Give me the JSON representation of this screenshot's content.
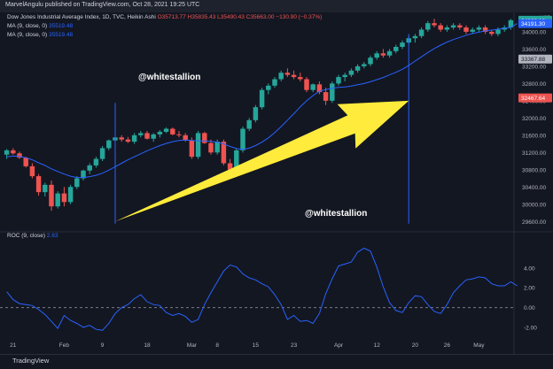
{
  "header": {
    "published_by": "MarvelAngulu published on TradingView.com, Oct 28, 2021 19:25 UTC"
  },
  "legend": {
    "symbol": "Dow Jones Industrial Average Index, 1D, TVC, Heikin Ashi",
    "ohlc": "O35713.77 H35835.43 L35490.43 C35663.00 −130.90 (−0.37%)",
    "ma1": "MA (9, close, 0)",
    "ma1_value": "35519.48",
    "ma2": "MA (9, close, 0)",
    "ma2_value": "35519.48",
    "roc_label": "ROC (9, close)",
    "roc_value": "2.83"
  },
  "watermarks": [
    "@whitestallion",
    "@whitestallion"
  ],
  "footer": {
    "brand": "TradingView"
  },
  "colors": {
    "up": "#26a69a",
    "down": "#ef5350",
    "ma": "#2962ff",
    "arrow": "#ffeb3b",
    "bg": "#131722"
  },
  "chart_data": [
    {
      "type": "candlestick",
      "title": "",
      "price_ticks": [
        "34000.00",
        "33600.00",
        "33200.00",
        "32800.00",
        "32400.00",
        "32000.00",
        "31600.00",
        "31200.00",
        "30800.00",
        "30400.00",
        "30000.00",
        "29600.00"
      ],
      "price_badges": [
        {
          "text": "34268.12",
          "value": 34268.12,
          "color": "#26a69a"
        },
        {
          "text": "34191.30",
          "value": 34191.3,
          "color": "#2962ff"
        },
        {
          "text": "33367.88",
          "value": 33367.88,
          "color": "#b2b5be"
        },
        {
          "text": "32467.64",
          "value": 32467.64,
          "color": "#ef5350"
        }
      ],
      "axis_unit": "USD",
      "ylim": [
        29400,
        34450
      ],
      "candles": [
        [
          31150,
          31280,
          31050,
          31250
        ],
        [
          31250,
          31300,
          31150,
          31180
        ],
        [
          31180,
          31220,
          31050,
          31080
        ],
        [
          31080,
          31100,
          30850,
          30880
        ],
        [
          30880,
          30950,
          30600,
          30650
        ],
        [
          30650,
          30700,
          30200,
          30280
        ],
        [
          30280,
          30500,
          30180,
          30450
        ],
        [
          30450,
          30550,
          29850,
          29950
        ],
        [
          29950,
          30300,
          29900,
          30250
        ],
        [
          30250,
          30400,
          29950,
          30050
        ],
        [
          30050,
          30450,
          30000,
          30400
        ],
        [
          30400,
          30650,
          30350,
          30600
        ],
        [
          30600,
          30800,
          30550,
          30780
        ],
        [
          30780,
          30950,
          30700,
          30900
        ],
        [
          30900,
          31100,
          30850,
          31050
        ],
        [
          31050,
          31350,
          31000,
          31300
        ],
        [
          31300,
          31500,
          31250,
          31480
        ],
        [
          31480,
          31600,
          31400,
          31550
        ],
        [
          31550,
          31600,
          31450,
          31500
        ],
        [
          31500,
          31560,
          31420,
          31450
        ],
        [
          31450,
          31650,
          31400,
          31600
        ],
        [
          31600,
          31700,
          31550,
          31650
        ],
        [
          31650,
          31700,
          31500,
          31520
        ],
        [
          31520,
          31650,
          31450,
          31620
        ],
        [
          31620,
          31720,
          31550,
          31680
        ],
        [
          31680,
          31780,
          31650,
          31750
        ],
        [
          31750,
          31780,
          31600,
          31620
        ],
        [
          31620,
          31700,
          31550,
          31600
        ],
        [
          31600,
          31650,
          31450,
          31480
        ],
        [
          31480,
          31550,
          31050,
          31100
        ],
        [
          31100,
          31700,
          31050,
          31650
        ],
        [
          31650,
          31680,
          31400,
          31420
        ],
        [
          31420,
          31500,
          31150,
          31200
        ],
        [
          31200,
          31500,
          31150,
          31450
        ],
        [
          31450,
          31500,
          30900,
          30950
        ],
        [
          30950,
          31050,
          30700,
          30800
        ],
        [
          30800,
          31300,
          30750,
          31250
        ],
        [
          31250,
          31800,
          31200,
          31750
        ],
        [
          31750,
          32000,
          31700,
          31950
        ],
        [
          31950,
          32300,
          31900,
          32250
        ],
        [
          32250,
          32700,
          32200,
          32650
        ],
        [
          32650,
          32800,
          32550,
          32750
        ],
        [
          32750,
          32950,
          32700,
          32900
        ],
        [
          32900,
          33100,
          32850,
          33050
        ],
        [
          33050,
          33150,
          32950,
          33000
        ],
        [
          33000,
          33100,
          32900,
          32950
        ],
        [
          32950,
          33050,
          32850,
          32900
        ],
        [
          32900,
          32950,
          32600,
          32650
        ],
        [
          32650,
          32800,
          32600,
          32780
        ],
        [
          32780,
          32850,
          32550,
          32600
        ],
        [
          32600,
          32700,
          32300,
          32400
        ],
        [
          32400,
          32850,
          32350,
          32800
        ],
        [
          32800,
          33000,
          32750,
          32950
        ],
        [
          32950,
          33050,
          32850,
          33000
        ],
        [
          33000,
          33150,
          32950,
          33100
        ],
        [
          33100,
          33250,
          33050,
          33200
        ],
        [
          33200,
          33300,
          33150,
          33250
        ],
        [
          33250,
          33450,
          33200,
          33400
        ],
        [
          33400,
          33550,
          33350,
          33500
        ],
        [
          33500,
          33600,
          33400,
          33450
        ],
        [
          33450,
          33600,
          33400,
          33550
        ],
        [
          33550,
          33700,
          33500,
          33650
        ],
        [
          33650,
          33800,
          33600,
          33750
        ],
        [
          33750,
          33900,
          33700,
          33850
        ],
        [
          33850,
          33950,
          33750,
          33900
        ],
        [
          33900,
          34100,
          33850,
          34050
        ],
        [
          34050,
          34250,
          34000,
          34200
        ],
        [
          34200,
          34300,
          34100,
          34150
        ],
        [
          34150,
          34200,
          34000,
          34050
        ],
        [
          34050,
          34150,
          34000,
          34100
        ],
        [
          34100,
          34200,
          34050,
          34150
        ],
        [
          34150,
          34200,
          34050,
          34100
        ],
        [
          34100,
          34150,
          33950,
          34000
        ],
        [
          34000,
          34100,
          33950,
          34050
        ],
        [
          34050,
          34150,
          34000,
          34100
        ],
        [
          34100,
          34150,
          33950,
          34000
        ],
        [
          34000,
          34050,
          33900,
          33950
        ],
        [
          33950,
          34100,
          33900,
          34050
        ],
        [
          34050,
          34150,
          34000,
          34100
        ],
        [
          34100,
          34300,
          34050,
          34268.12
        ]
      ],
      "ma": [
        31100,
        31120,
        31110,
        31080,
        31030,
        30960,
        30900,
        30820,
        30760,
        30700,
        30650,
        30620,
        30620,
        30640,
        30670,
        30720,
        30790,
        30870,
        30950,
        31030,
        31100,
        31170,
        31240,
        31300,
        31360,
        31410,
        31450,
        31480,
        31490,
        31480,
        31470,
        31470,
        31460,
        31440,
        31400,
        31340,
        31290,
        31270,
        31300,
        31360,
        31440,
        31540,
        31660,
        31800,
        31950,
        32100,
        32260,
        32400,
        32520,
        32620,
        32660,
        32690,
        32710,
        32720,
        32740,
        32770,
        32800,
        32840,
        32890,
        32940,
        33000,
        33060,
        33130,
        33220,
        33320,
        33420,
        33520,
        33610,
        33690,
        33760,
        33820,
        33870,
        33920,
        33960,
        33990,
        34020,
        34040,
        34060,
        34080,
        34100,
        34191.3
      ]
    },
    {
      "type": "line",
      "title": "",
      "series_name": "",
      "ylim": [
        -2.9,
        6.4
      ],
      "roc_ticks": [
        "4.00",
        "2.00",
        "0.00",
        "-2.00"
      ],
      "zero_line": 0.0,
      "values": [
        1.6,
        0.8,
        0.4,
        0.3,
        0.2,
        -0.2,
        -0.7,
        -1.4,
        -2.1,
        -0.8,
        -1.3,
        -1.6,
        -2.0,
        -1.8,
        -2.2,
        -2.3,
        -1.6,
        -0.6,
        0.0,
        0.3,
        0.9,
        1.3,
        0.6,
        0.3,
        0.2,
        -0.5,
        -0.8,
        -0.6,
        -0.9,
        -1.5,
        -1.2,
        0.3,
        1.5,
        2.6,
        3.7,
        4.3,
        4.1,
        3.4,
        3.0,
        2.8,
        2.4,
        2.1,
        1.3,
        0.3,
        -1.2,
        -0.8,
        -1.4,
        -1.3,
        -1.6,
        -0.6,
        1.4,
        2.9,
        4.2,
        4.4,
        4.6,
        5.6,
        6.0,
        5.7,
        4.1,
        2.1,
        0.5,
        -0.3,
        -0.5,
        0.5,
        1.2,
        1.1,
        0.3,
        -0.4,
        -0.6,
        0.3,
        1.5,
        2.2,
        2.8,
        2.9,
        3.1,
        3.0,
        2.4,
        2.2,
        2.2,
        2.6,
        2.2
      ],
      "x_ticks": [
        {
          "label": "21",
          "idx": 1
        },
        {
          "label": "Feb",
          "idx": 9
        },
        {
          "label": "9",
          "idx": 15
        },
        {
          "label": "18",
          "idx": 22
        },
        {
          "label": "Mar",
          "idx": 29
        },
        {
          "label": "8",
          "idx": 33
        },
        {
          "label": "15",
          "idx": 39
        },
        {
          "label": "23",
          "idx": 45
        },
        {
          "label": "Apr",
          "idx": 52
        },
        {
          "label": "12",
          "idx": 58
        },
        {
          "label": "20",
          "idx": 64
        },
        {
          "label": "26",
          "idx": 69
        },
        {
          "label": "May",
          "idx": 74
        }
      ]
    }
  ]
}
